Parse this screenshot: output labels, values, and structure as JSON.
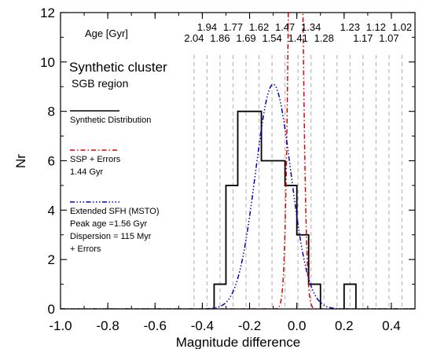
{
  "chart_data": {
    "type": "histogram",
    "xlabel": "Magnitude difference",
    "ylabel": "Nr",
    "xlim": [
      -1.0,
      0.5
    ],
    "ylim": [
      0,
      12
    ],
    "x_ticks": [
      "-1.0",
      "-0.8",
      "-0.6",
      "-0.4",
      "-0.2",
      "0.0",
      "0.2",
      "0.4"
    ],
    "x_tick_values": [
      -1.0,
      -0.8,
      -0.6,
      -0.4,
      -0.2,
      0.0,
      0.2,
      0.4
    ],
    "y_ticks": [
      "0",
      "2",
      "4",
      "6",
      "8",
      "10",
      "12"
    ],
    "y_tick_values": [
      0,
      2,
      4,
      6,
      8,
      10,
      12
    ],
    "age_axis_title": "Age [Gyr]",
    "age_labels": [
      {
        "label": "2.04",
        "x": -0.435,
        "row": 2
      },
      {
        "label": "1.94",
        "x": -0.38,
        "row": 1
      },
      {
        "label": "1.86",
        "x": -0.325,
        "row": 2
      },
      {
        "label": "1.77",
        "x": -0.27,
        "row": 1
      },
      {
        "label": "1.69",
        "x": -0.215,
        "row": 2
      },
      {
        "label": "1.62",
        "x": -0.16,
        "row": 1
      },
      {
        "label": "1.54",
        "x": -0.105,
        "row": 2
      },
      {
        "label": "1.47",
        "x": -0.05,
        "row": 1
      },
      {
        "label": "1.41",
        "x": 0.005,
        "row": 2
      },
      {
        "label": "1.34",
        "x": 0.06,
        "row": 1
      },
      {
        "label": "1.28",
        "x": 0.115,
        "row": 2
      },
      {
        "label": "1.23",
        "x": 0.225,
        "row": 1
      },
      {
        "label": "1.17",
        "x": 0.28,
        "row": 2
      },
      {
        "label": "1.12",
        "x": 0.335,
        "row": 1
      },
      {
        "label": "1.07",
        "x": 0.39,
        "row": 2
      },
      {
        "label": "1.02",
        "x": 0.445,
        "row": 1
      }
    ],
    "age_gridlines_x": [
      -0.435,
      -0.38,
      -0.325,
      -0.27,
      -0.215,
      -0.16,
      -0.105,
      -0.05,
      0.005,
      0.06,
      0.115,
      0.17,
      0.225,
      0.28,
      0.335,
      0.39,
      0.445
    ],
    "histogram": {
      "name": "Synthetic Distribution",
      "color": "#000000",
      "bins": [
        {
          "x0": -0.35,
          "x1": -0.3,
          "count": 1
        },
        {
          "x0": -0.3,
          "x1": -0.25,
          "count": 5
        },
        {
          "x0": -0.25,
          "x1": -0.2,
          "count": 8
        },
        {
          "x0": -0.2,
          "x1": -0.15,
          "count": 8
        },
        {
          "x0": -0.15,
          "x1": -0.1,
          "count": 6
        },
        {
          "x0": -0.1,
          "x1": -0.05,
          "count": 6
        },
        {
          "x0": -0.05,
          "x1": 0.0,
          "count": 5
        },
        {
          "x0": 0.0,
          "x1": 0.05,
          "count": 3
        },
        {
          "x0": 0.05,
          "x1": 0.1,
          "count": 1
        },
        {
          "x0": 0.1,
          "x1": 0.15,
          "count": 0
        },
        {
          "x0": 0.15,
          "x1": 0.2,
          "count": 0
        },
        {
          "x0": 0.2,
          "x1": 0.25,
          "count": 1
        }
      ]
    },
    "curves": [
      {
        "name": "SSP + Errors",
        "color": "#dd0000",
        "style": "dashdot",
        "mean": -0.005,
        "sigma": 0.02,
        "peak": 40
      },
      {
        "name": "Extended SFH (MSTO)",
        "color": "#0000bb",
        "style": "dashdotdotdot",
        "mean": -0.1,
        "sigma": 0.075,
        "peak": 9.1
      }
    ],
    "annotations": {
      "title": "Synthetic cluster",
      "subtitle": "SGB region",
      "legend": [
        {
          "label": "Synthetic Distribution",
          "color": "#000000",
          "style": "solid",
          "details": []
        },
        {
          "label": "SSP + Errors",
          "color": "#dd0000",
          "style": "dashdot",
          "details": [
            "1.44 Gyr"
          ]
        },
        {
          "label": "Extended SFH (MSTO)",
          "color": "#0000bb",
          "style": "dashdotdotdot",
          "details": [
            "Peak age =1.56 Gyr",
            "Dispersion = 115 Myr",
            "+ Errors"
          ]
        }
      ]
    }
  }
}
